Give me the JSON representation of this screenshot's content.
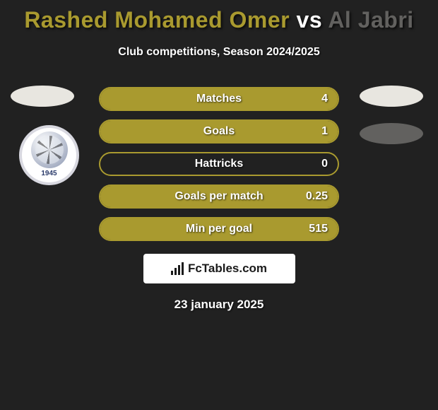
{
  "header": {
    "player1": "Rashed Mohamed Omer",
    "vs": "vs",
    "player2": "Al Jabri",
    "player1_color": "#a99a2f",
    "player2_color": "#62615f",
    "subtitle": "Club competitions, Season 2024/2025"
  },
  "badges": {
    "top_left_color": "#e8e6e0",
    "top_right_color": "#e8e6e0",
    "bottom_right_color": "#62615f",
    "club_year": "1945"
  },
  "stats": {
    "bar_border_color": "#a99a2f",
    "bar_fill_color": "#a99a2f",
    "rows": [
      {
        "label": "Matches",
        "value": "4",
        "fill_pct": 100,
        "fill_side": "full"
      },
      {
        "label": "Goals",
        "value": "1",
        "fill_pct": 100,
        "fill_side": "full"
      },
      {
        "label": "Hattricks",
        "value": "0",
        "fill_pct": 0,
        "fill_side": "none"
      },
      {
        "label": "Goals per match",
        "value": "0.25",
        "fill_pct": 100,
        "fill_side": "full"
      },
      {
        "label": "Min per goal",
        "value": "515",
        "fill_pct": 100,
        "fill_side": "full"
      }
    ]
  },
  "footer": {
    "brand": "FcTables.com",
    "date": "23 january 2025"
  },
  "colors": {
    "background": "#212121",
    "text": "#ffffff"
  }
}
